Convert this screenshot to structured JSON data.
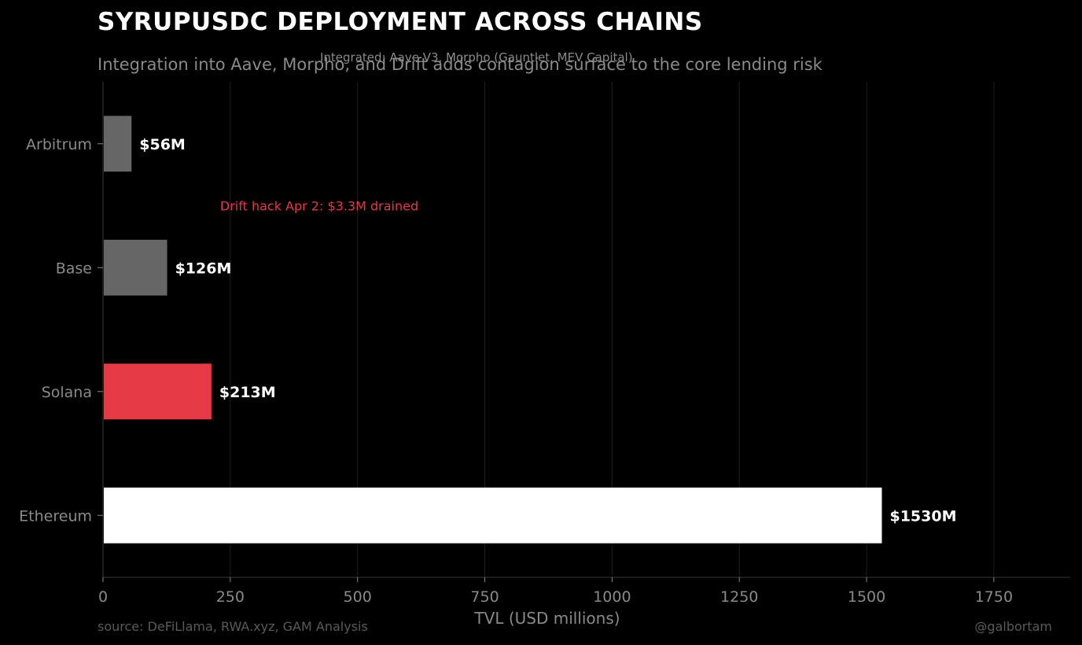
{
  "header": {
    "title": "SYRUPUSDC DEPLOYMENT ACROSS CHAINS",
    "subtitle": "Integration into Aave, Morpho, and Drift adds contagion surface to the core lending risk",
    "overlay_note": "Integrated: Aave V3, Morpho (Gauntlet, MEV Capital)"
  },
  "footer": {
    "source": "source: DeFiLlama, RWA.xyz, GAM Analysis",
    "handle": "@galbortam"
  },
  "colors": {
    "background": "#000000",
    "highlight": "#e63946",
    "primary": "#ffffff",
    "secondary": "#666666",
    "grid": "#1f1f1f",
    "muted_text": "#8a8a8a"
  },
  "chart_data": {
    "type": "bar",
    "orientation": "horizontal",
    "categories": [
      "Arbitrum",
      "Base",
      "Solana",
      "Ethereum"
    ],
    "values": [
      56,
      126,
      213,
      1530
    ],
    "value_labels": [
      "$56M",
      "$126M",
      "$213M",
      "$1530M"
    ],
    "bar_colors": [
      "#666666",
      "#666666",
      "#e63946",
      "#ffffff"
    ],
    "xlabel": "TVL (USD millions)",
    "ylabel": "",
    "xlim": [
      0,
      1900
    ],
    "xticks": [
      0,
      250,
      500,
      750,
      1000,
      1250,
      1500,
      1750
    ],
    "grid": "vertical",
    "annotations": [
      {
        "text": "Drift hack Apr 2: $3.3M drained",
        "x": 230,
        "between": [
          "Arbitrum",
          "Base"
        ]
      }
    ]
  }
}
